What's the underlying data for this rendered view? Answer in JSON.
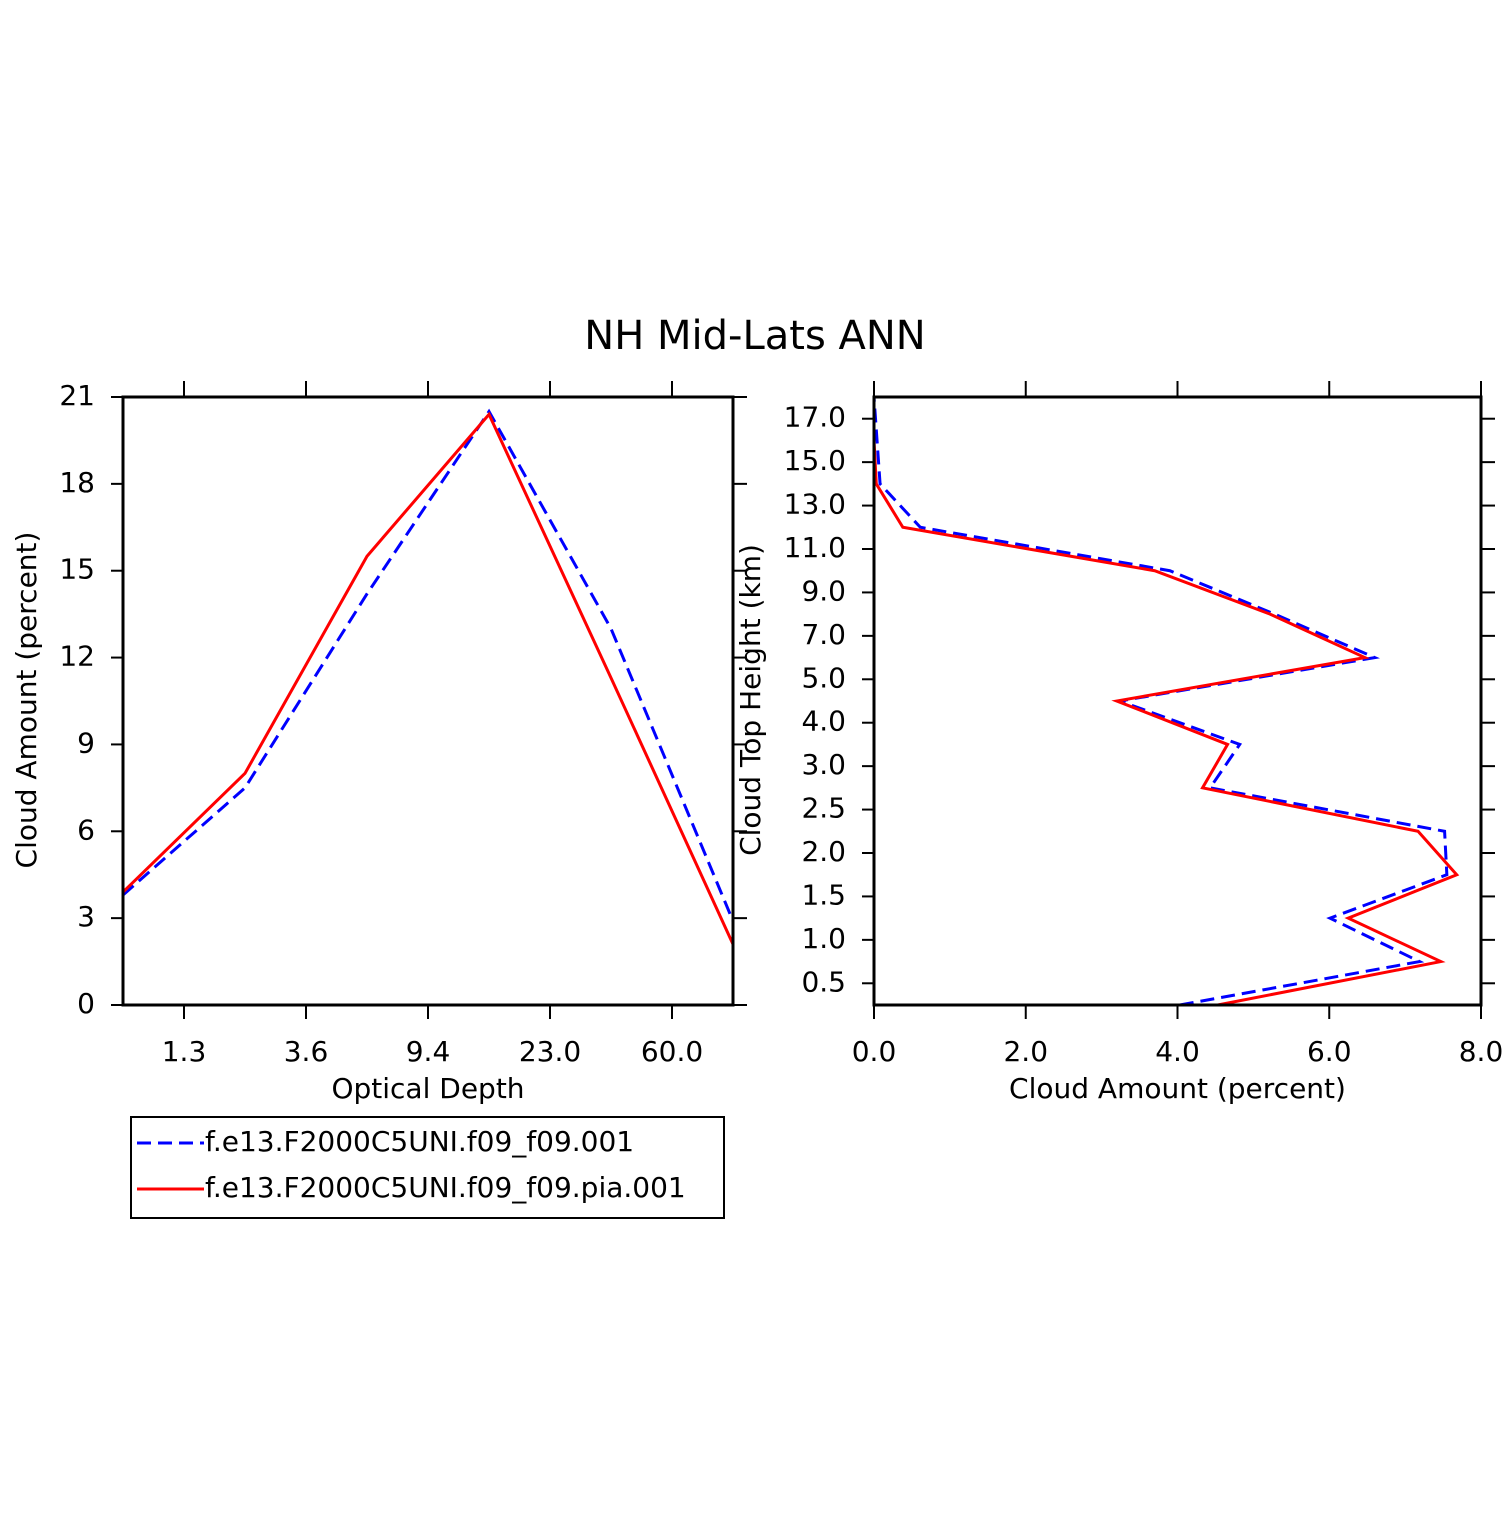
{
  "title": "NH Mid-Lats ANN",
  "chart_data": [
    {
      "type": "line",
      "xlabel": "Optical Depth",
      "ylabel": "Cloud Amount (percent)",
      "x": [
        0,
        1,
        2,
        3,
        4,
        5
      ],
      "xlim": [
        0,
        5
      ],
      "xticks": [
        {
          "value": 0.5,
          "label": "1.3"
        },
        {
          "value": 1.5,
          "label": "3.6"
        },
        {
          "value": 2.5,
          "label": "9.4"
        },
        {
          "value": 3.5,
          "label": "23.0"
        },
        {
          "value": 4.5,
          "label": "60.0"
        }
      ],
      "ylim": [
        0,
        21
      ],
      "yticks": [
        0,
        3,
        6,
        9,
        12,
        15,
        18,
        21
      ],
      "series": [
        {
          "name": "f.e13.F2000C5UNI.f09_f09.001",
          "color": "#0000ff",
          "dashed": true,
          "values": [
            3.8,
            7.5,
            14.2,
            20.5,
            13.0,
            2.9
          ]
        },
        {
          "name": "f.e13.F2000C5UNI.f09_f09.pia.001",
          "color": "#ff0000",
          "dashed": false,
          "values": [
            3.9,
            8.0,
            15.5,
            20.4,
            11.3,
            2.1
          ]
        }
      ]
    },
    {
      "type": "hline",
      "xlabel": "Cloud Amount (percent)",
      "ylabel": "Cloud Top Height (km)",
      "y": [
        0,
        1,
        2,
        3,
        4,
        5,
        6,
        7,
        8,
        9,
        10,
        11,
        12,
        13,
        14
      ],
      "xlim": [
        0,
        8
      ],
      "xticks": [
        {
          "value": 0,
          "label": "0.0"
        },
        {
          "value": 2,
          "label": "2.0"
        },
        {
          "value": 4,
          "label": "4.0"
        },
        {
          "value": 6,
          "label": "6.0"
        },
        {
          "value": 8,
          "label": "8.0"
        }
      ],
      "ylim": [
        0,
        14
      ],
      "yticks": [
        {
          "value": 0.5,
          "label": "0.5"
        },
        {
          "value": 1.5,
          "label": "1.0"
        },
        {
          "value": 2.5,
          "label": "1.5"
        },
        {
          "value": 3.5,
          "label": "2.0"
        },
        {
          "value": 4.5,
          "label": "2.5"
        },
        {
          "value": 5.5,
          "label": "3.0"
        },
        {
          "value": 6.5,
          "label": "4.0"
        },
        {
          "value": 7.5,
          "label": "5.0"
        },
        {
          "value": 8.5,
          "label": "7.0"
        },
        {
          "value": 9.5,
          "label": "9.0"
        },
        {
          "value": 10.5,
          "label": "11.0"
        },
        {
          "value": 11.5,
          "label": "13.0"
        },
        {
          "value": 12.5,
          "label": "15.0"
        },
        {
          "value": 13.5,
          "label": "17.0"
        }
      ],
      "series": [
        {
          "color": "#0000ff",
          "dashed": true,
          "values": [
            4.03,
            7.19,
            6.01,
            7.55,
            7.52,
            4.43,
            4.82,
            3.24,
            6.6,
            5.28,
            3.9,
            0.61,
            0.08,
            0.04,
            0
          ]
        },
        {
          "color": "#ff0000",
          "dashed": false,
          "values": [
            4.53,
            7.47,
            6.25,
            7.68,
            7.17,
            4.33,
            4.66,
            3.2,
            6.47,
            5.22,
            3.7,
            0.38,
            0.03,
            0,
            0
          ]
        }
      ]
    }
  ]
}
